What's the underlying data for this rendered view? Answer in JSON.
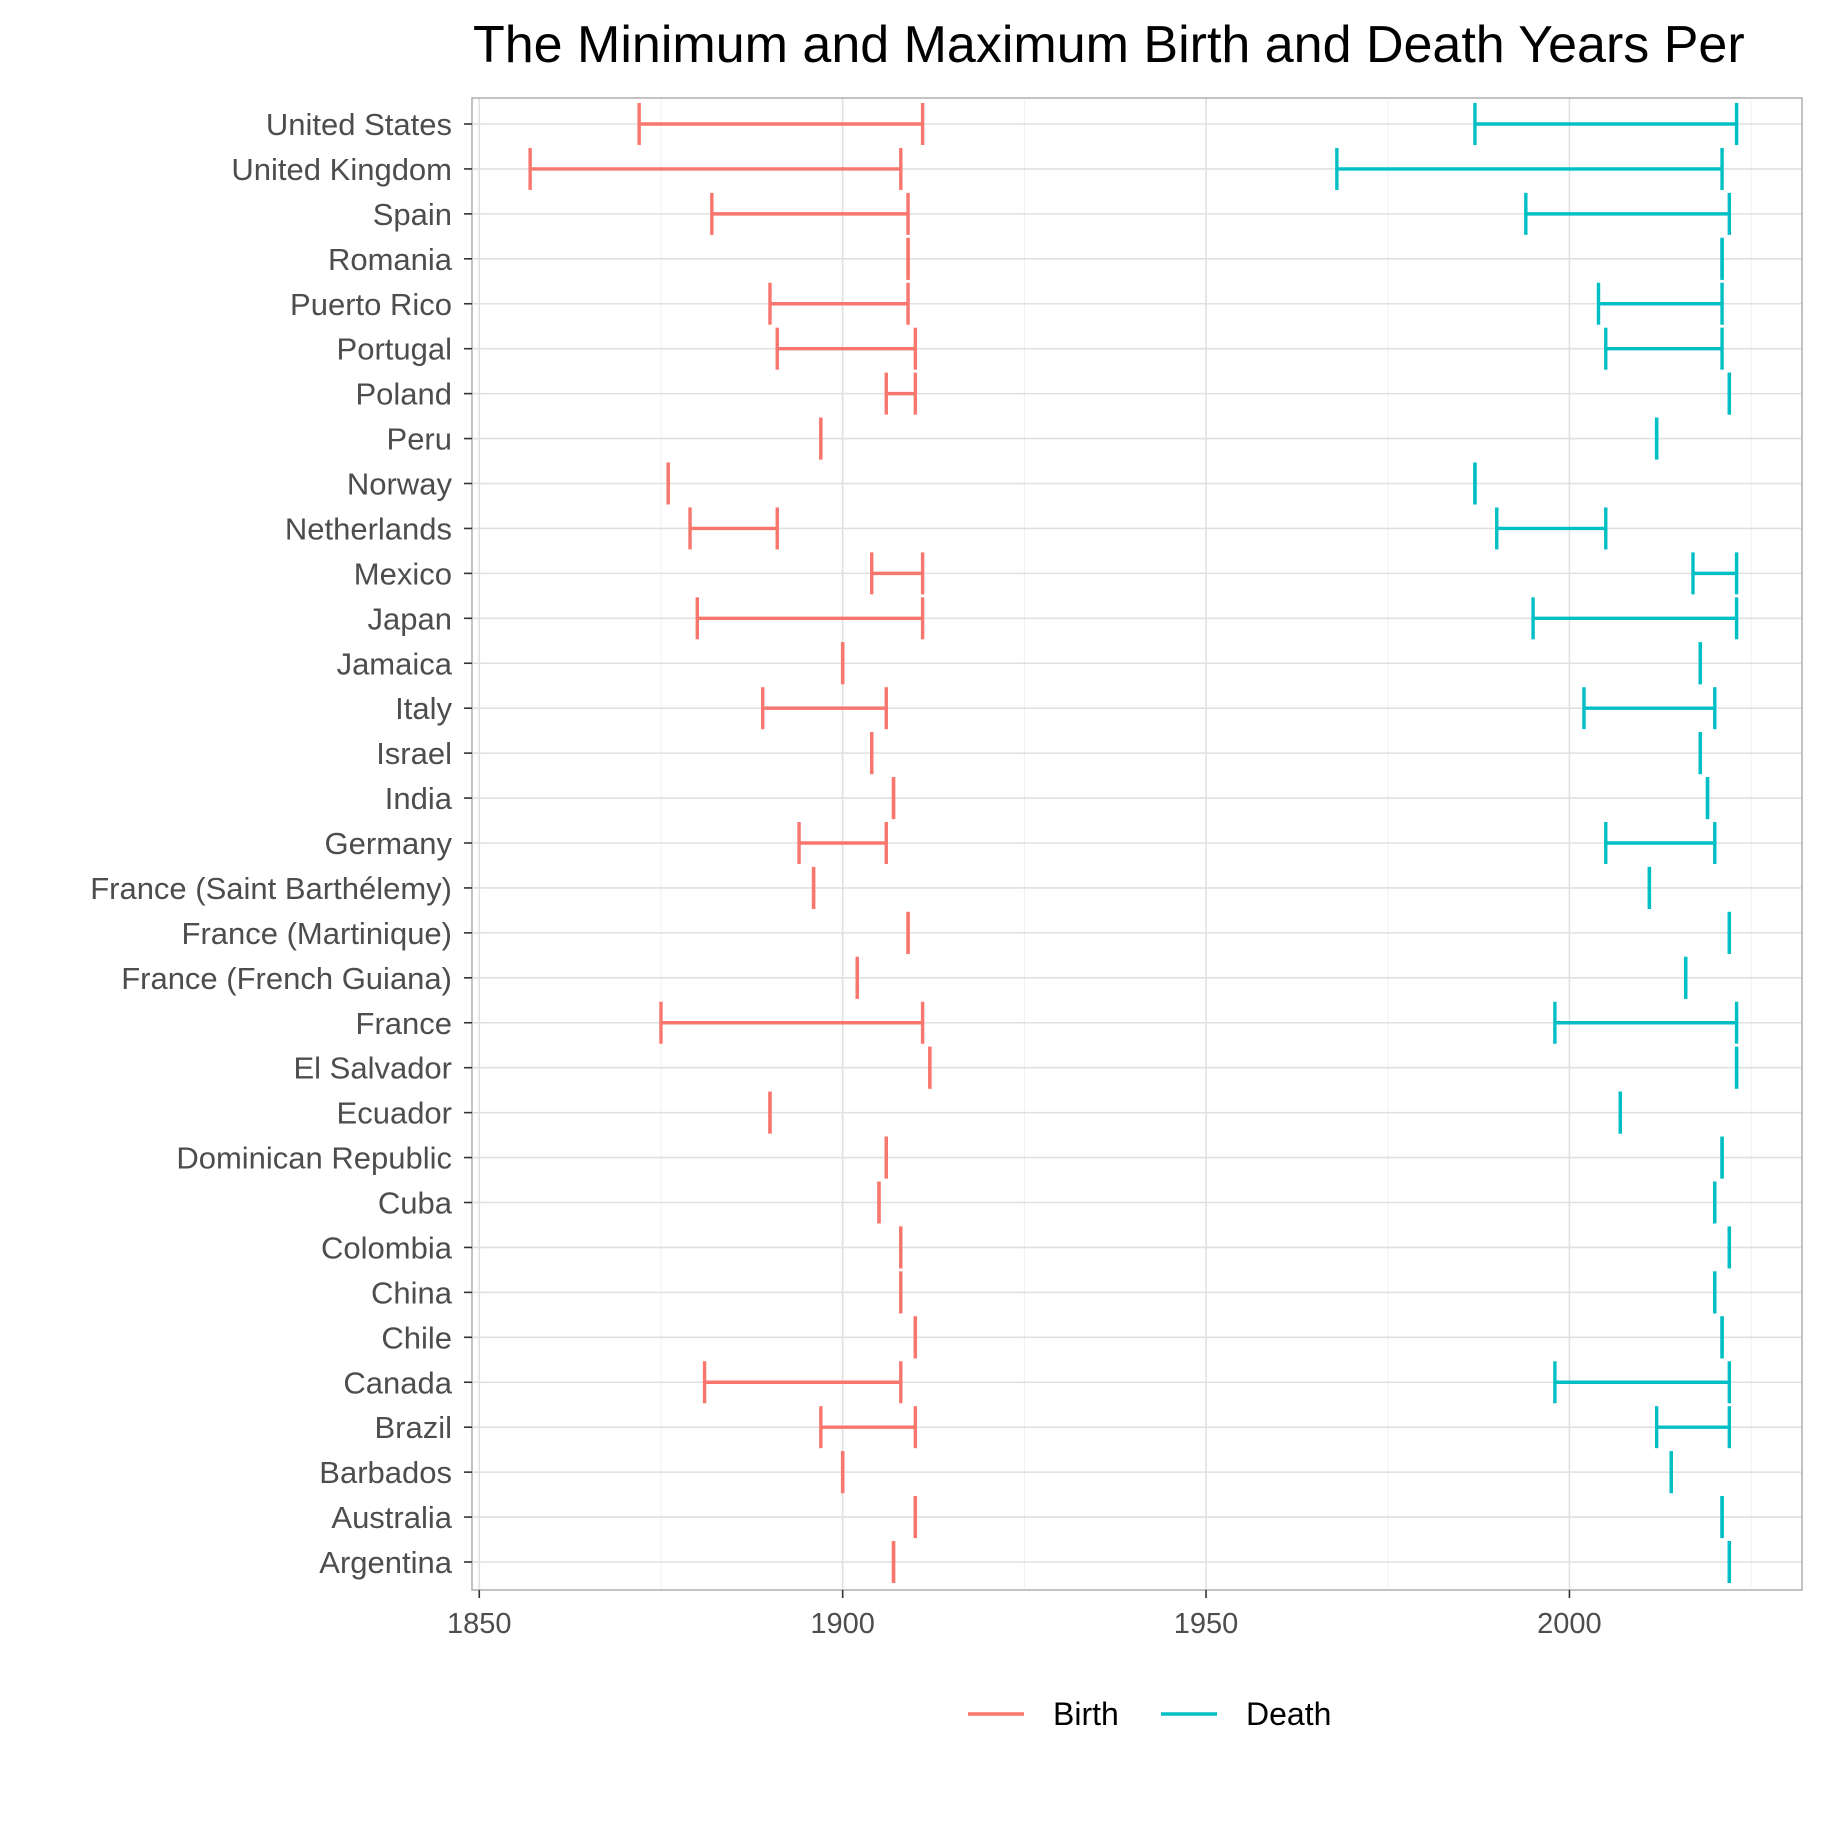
{
  "chart_data": {
    "type": "range",
    "title": "The Minimum and Maximum Birth and Death Years Per",
    "xlabel": "",
    "ylabel": "",
    "xlim": [
      1849,
      2032
    ],
    "x_ticks": [
      1850,
      1900,
      1950,
      2000
    ],
    "grid": true,
    "legend_position": "bottom",
    "colors": {
      "Birth": "#F8766D",
      "Death": "#00BFC4"
    },
    "series": [
      {
        "name": "Birth"
      },
      {
        "name": "Death"
      }
    ],
    "categories": [
      {
        "label": "United States",
        "birth": [
          1872,
          1911
        ],
        "death": [
          1987,
          2023
        ]
      },
      {
        "label": "United Kingdom",
        "birth": [
          1857,
          1908
        ],
        "death": [
          1968,
          2021
        ]
      },
      {
        "label": "Spain",
        "birth": [
          1882,
          1909
        ],
        "death": [
          1994,
          2022
        ]
      },
      {
        "label": "Romania",
        "birth": [
          1909,
          1909
        ],
        "death": [
          2021,
          2021
        ]
      },
      {
        "label": "Puerto Rico",
        "birth": [
          1890,
          1909
        ],
        "death": [
          2004,
          2021
        ]
      },
      {
        "label": "Portugal",
        "birth": [
          1891,
          1910
        ],
        "death": [
          2005,
          2021
        ]
      },
      {
        "label": "Poland",
        "birth": [
          1906,
          1910
        ],
        "death": [
          2022,
          2022
        ]
      },
      {
        "label": "Peru",
        "birth": [
          1897,
          1897
        ],
        "death": [
          2012,
          2012
        ]
      },
      {
        "label": "Norway",
        "birth": [
          1876,
          1876
        ],
        "death": [
          1987,
          1987
        ]
      },
      {
        "label": "Netherlands",
        "birth": [
          1879,
          1891
        ],
        "death": [
          1990,
          2005
        ]
      },
      {
        "label": "Mexico",
        "birth": [
          1904,
          1911
        ],
        "death": [
          2017,
          2023
        ]
      },
      {
        "label": "Japan",
        "birth": [
          1880,
          1911
        ],
        "death": [
          1995,
          2023
        ]
      },
      {
        "label": "Jamaica",
        "birth": [
          1900,
          1900
        ],
        "death": [
          2018,
          2018
        ]
      },
      {
        "label": "Italy",
        "birth": [
          1889,
          1906
        ],
        "death": [
          2002,
          2020
        ]
      },
      {
        "label": "Israel",
        "birth": [
          1904,
          1904
        ],
        "death": [
          2018,
          2018
        ]
      },
      {
        "label": "India",
        "birth": [
          1907,
          1907
        ],
        "death": [
          2019,
          2019
        ]
      },
      {
        "label": "Germany",
        "birth": [
          1894,
          1906
        ],
        "death": [
          2005,
          2020
        ]
      },
      {
        "label": "France (Saint Barthélemy)",
        "birth": [
          1896,
          1896
        ],
        "death": [
          2011,
          2011
        ]
      },
      {
        "label": "France (Martinique)",
        "birth": [
          1909,
          1909
        ],
        "death": [
          2022,
          2022
        ]
      },
      {
        "label": "France (French Guiana)",
        "birth": [
          1902,
          1902
        ],
        "death": [
          2016,
          2016
        ]
      },
      {
        "label": "France",
        "birth": [
          1875,
          1911
        ],
        "death": [
          1998,
          2023
        ]
      },
      {
        "label": "El Salvador",
        "birth": [
          1912,
          1912
        ],
        "death": [
          2023,
          2023
        ]
      },
      {
        "label": "Ecuador",
        "birth": [
          1890,
          1890
        ],
        "death": [
          2007,
          2007
        ]
      },
      {
        "label": "Dominican Republic",
        "birth": [
          1906,
          1906
        ],
        "death": [
          2021,
          2021
        ]
      },
      {
        "label": "Cuba",
        "birth": [
          1905,
          1905
        ],
        "death": [
          2020,
          2020
        ]
      },
      {
        "label": "Colombia",
        "birth": [
          1908,
          1908
        ],
        "death": [
          2022,
          2022
        ]
      },
      {
        "label": "China",
        "birth": [
          1908,
          1908
        ],
        "death": [
          2020,
          2020
        ]
      },
      {
        "label": "Chile",
        "birth": [
          1910,
          1910
        ],
        "death": [
          2021,
          2021
        ]
      },
      {
        "label": "Canada",
        "birth": [
          1881,
          1908
        ],
        "death": [
          1998,
          2022
        ]
      },
      {
        "label": "Brazil",
        "birth": [
          1897,
          1910
        ],
        "death": [
          2012,
          2022
        ]
      },
      {
        "label": "Barbados",
        "birth": [
          1900,
          1900
        ],
        "death": [
          2014,
          2014
        ]
      },
      {
        "label": "Australia",
        "birth": [
          1910,
          1910
        ],
        "death": [
          2021,
          2021
        ]
      },
      {
        "label": "Argentina",
        "birth": [
          1907,
          1907
        ],
        "death": [
          2022,
          2022
        ]
      }
    ]
  }
}
